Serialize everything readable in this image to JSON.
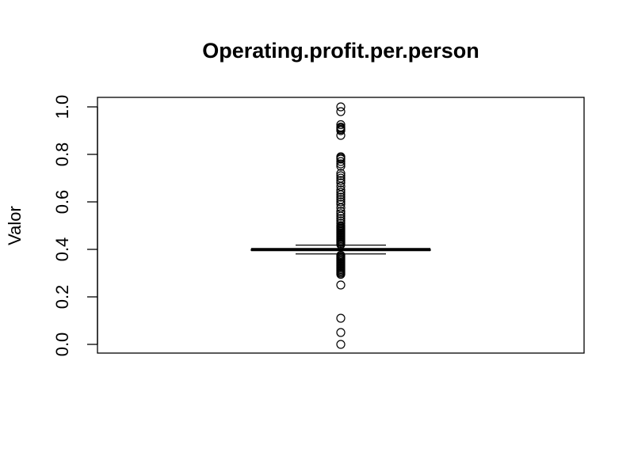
{
  "chart_data": {
    "type": "boxplot",
    "title": "Operating.profit.per.person",
    "xlabel": "",
    "ylabel": "Valor",
    "ylim": [
      0,
      1
    ],
    "yticks": [
      0.0,
      0.2,
      0.4,
      0.6,
      0.8,
      1.0
    ],
    "ytick_labels": [
      "0.0",
      "0.2",
      "0.4",
      "0.6",
      "0.8",
      "1.0"
    ],
    "grid": false,
    "box": {
      "q1": 0.3956,
      "median": 0.3991,
      "q3": 0.4005,
      "whisker_low": 0.3808,
      "whisker_high": 0.4178
    },
    "outliers": [
      1.0,
      0.98,
      0.925,
      0.915,
      0.91,
      0.905,
      0.9,
      0.88,
      0.79,
      0.785,
      0.78,
      0.77,
      0.76,
      0.75,
      0.72,
      0.71,
      0.7,
      0.69,
      0.68,
      0.665,
      0.65,
      0.64,
      0.63,
      0.62,
      0.61,
      0.6,
      0.59,
      0.575,
      0.56,
      0.55,
      0.54,
      0.53,
      0.52,
      0.51,
      0.5,
      0.495,
      0.49,
      0.485,
      0.48,
      0.475,
      0.47,
      0.465,
      0.46,
      0.455,
      0.45,
      0.445,
      0.44,
      0.435,
      0.43,
      0.425,
      0.42,
      0.375,
      0.37,
      0.365,
      0.36,
      0.355,
      0.35,
      0.345,
      0.34,
      0.335,
      0.33,
      0.325,
      0.32,
      0.315,
      0.31,
      0.305,
      0.3,
      0.295,
      0.25,
      0.11,
      0.05,
      0.0
    ]
  }
}
